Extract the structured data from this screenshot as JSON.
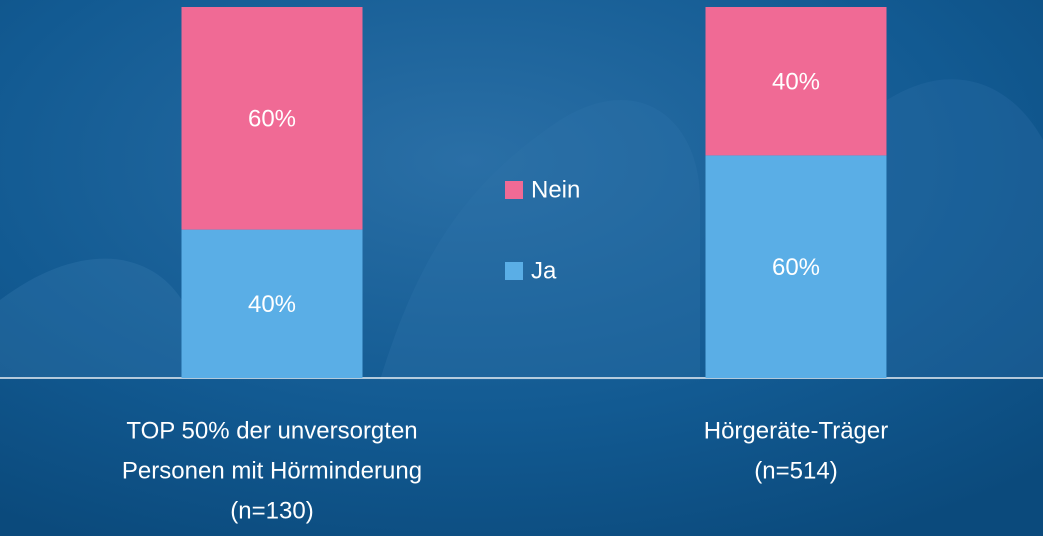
{
  "chart_data": {
    "type": "stacked_bar",
    "categories": [
      [
        "TOP 50% der unversorgten",
        "Personen mit Hörminderung",
        "(n=130)"
      ],
      [
        "Hörgeräte-Träger",
        "(n=514)"
      ]
    ],
    "series": [
      {
        "name": "Ja",
        "color": "#5aaee6",
        "values": [
          40,
          60
        ],
        "value_labels": [
          "40%",
          "60%"
        ]
      },
      {
        "name": "Nein",
        "color": "#f06a95",
        "values": [
          60,
          40
        ],
        "value_labels": [
          "60%",
          "40%"
        ]
      }
    ],
    "ylim": [
      0,
      100
    ],
    "legend": "center"
  }
}
